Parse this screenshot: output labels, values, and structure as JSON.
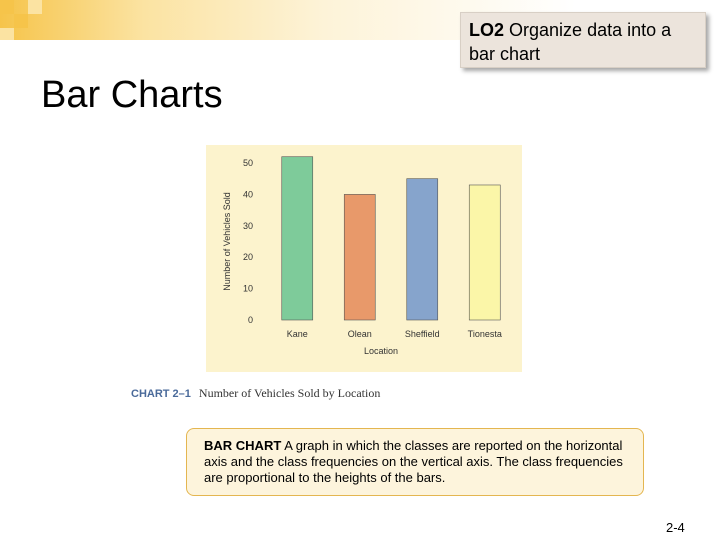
{
  "slide": {
    "lo_tag": "LO2",
    "lo_text": "Organize data into a bar chart",
    "title": "Bar Charts",
    "caption_number": "CHART 2–1",
    "caption_text": "Number of Vehicles Sold by Location",
    "definition_term": "BAR CHART",
    "definition_text": "A graph in which the classes are reported on the horizontal axis  and the class frequencies on the vertical axis. The class frequencies are proportional to the heights of the bars.",
    "page_number": "2-4"
  },
  "colors": {
    "panel_bg": "#fcf3cd",
    "bar_colors": [
      "#7ecb9a",
      "#e8996a",
      "#86a4cc",
      "#fbf6a8"
    ],
    "accent_gold": "#f6c44a"
  },
  "chart_data": {
    "type": "bar",
    "categories": [
      "Kane",
      "Olean",
      "Sheffield",
      "Tionesta"
    ],
    "values": [
      52,
      40,
      45,
      43
    ],
    "xlabel": "Location",
    "ylabel": "Number of Vehicles Sold",
    "ylim": [
      0,
      50
    ],
    "yticks": [
      0,
      10,
      20,
      30,
      40,
      50
    ],
    "grid": false
  }
}
